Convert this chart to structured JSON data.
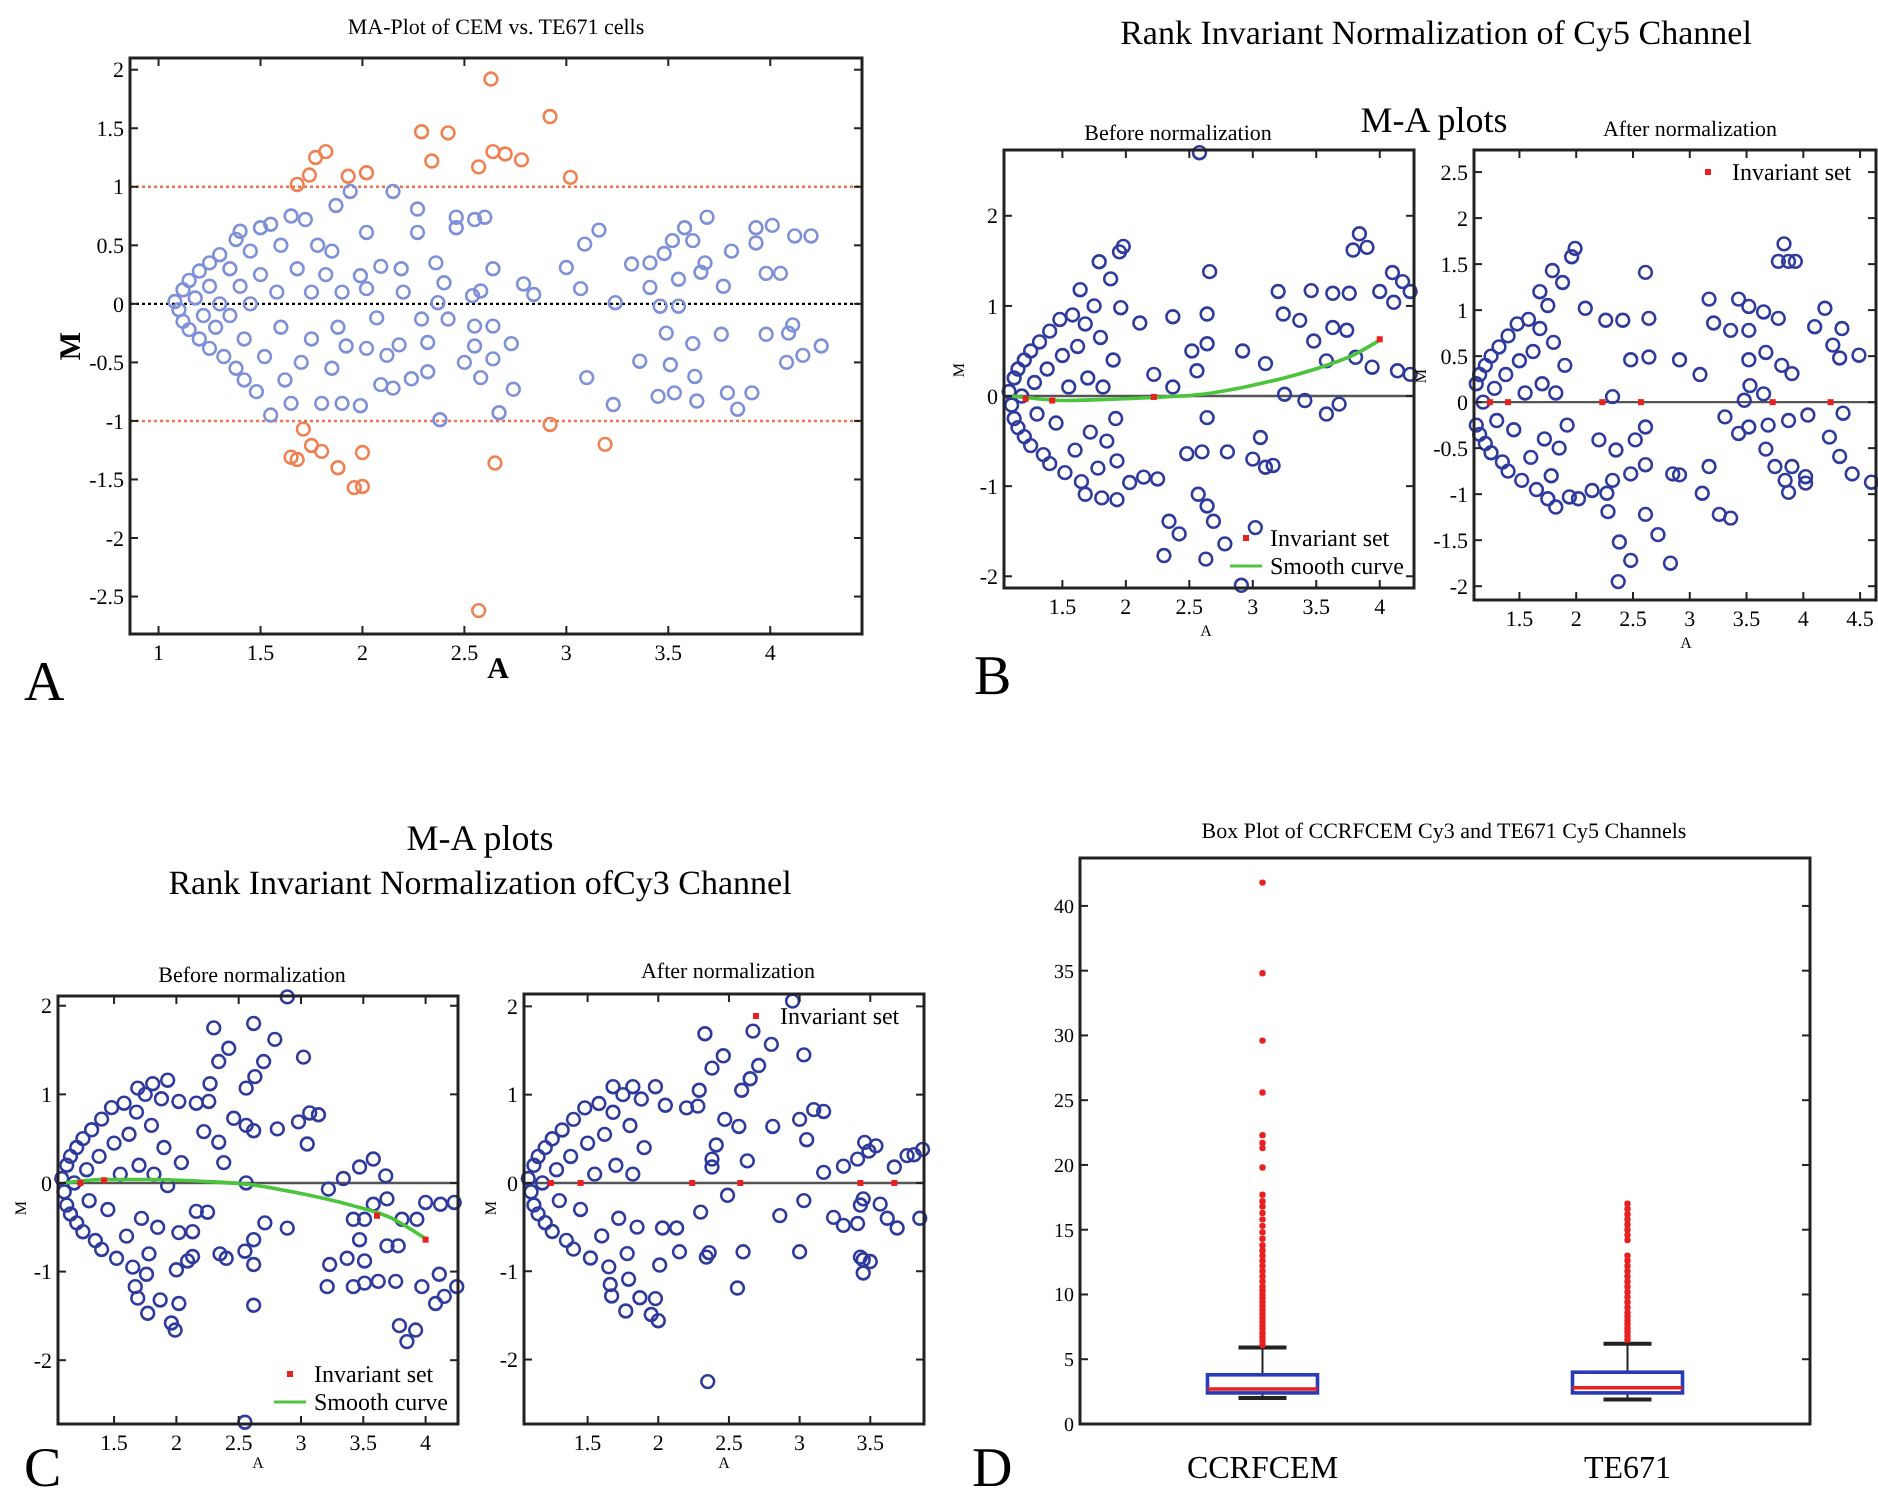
{
  "chart_data": [
    {
      "type": "scatter",
      "title": "MA-Plot of CEM vs. TE671 cells",
      "xlabel": "A",
      "ylabel": "M",
      "xlim": [
        0.86,
        4.45
      ],
      "ylim": [
        -2.82,
        2.1
      ],
      "xticks": [
        1,
        1.5,
        2,
        2.5,
        3,
        3.5,
        4
      ],
      "yticks": [
        2,
        1.5,
        1,
        0.5,
        0,
        -0.5,
        -1,
        -1.5,
        -2,
        -2.5
      ],
      "grid": false,
      "marker": "circle",
      "annotations": [
        "A"
      ],
      "ref_lines": [
        {
          "axis": "y",
          "value": 1,
          "color": "#f07050",
          "line_style": "dotted"
        },
        {
          "axis": "y",
          "value": 0,
          "color": "#000000",
          "line_style": "dotted"
        },
        {
          "axis": "y",
          "value": -1,
          "color": "#f07050",
          "line_style": "dotted"
        }
      ],
      "series": [
        {
          "color": "#7d90d8",
          "x": [
            2.15,
            1.94,
            1.87,
            2.27,
            2.27,
            2.46,
            2.46,
            2.55,
            2.6,
            2.64,
            2.36,
            2.4,
            2.19,
            2.09,
            2.02,
            2.02,
            1.99,
            2.54,
            2.58,
            2.79,
            2.84,
            3,
            3.07,
            3.09,
            3.16,
            3.24,
            3.32,
            3.41,
            3.41,
            3.48,
            3.52,
            3.58,
            3.62,
            3.55,
            3.55,
            3.46,
            3.66,
            3.68,
            3.69,
            3.77,
            3.81,
            3.93,
            3.93,
            4.01,
            3.98,
            4.05,
            4.12,
            4.2,
            3.98,
            4.09,
            4.11,
            4.16,
            4.25,
            4.08,
            3.84,
            3.79,
            3.91,
            3.76,
            3.64,
            3.63,
            3.62,
            3.49,
            3.51,
            3.45,
            3.53,
            3.36,
            3.23,
            3.1,
            2.74,
            2.73,
            2.67,
            2.58,
            2.64,
            2.55,
            2.64,
            2.55,
            2.5,
            2.38,
            2.32,
            2.24,
            2.18,
            2.12,
            2.15,
            2.09,
            2.02,
            1.99,
            1.92,
            2.29,
            2.32,
            2.42,
            2.37,
            2.07,
            2.2,
            1.08,
            1.1,
            1.12,
            1.12,
            1.15,
            1.15,
            1.18,
            1.2,
            1.2,
            1.22,
            1.25,
            1.25,
            1.25,
            1.28,
            1.3,
            1.3,
            1.32,
            1.35,
            1.35,
            1.38,
            1.38,
            1.4,
            1.4,
            1.42,
            1.42,
            1.45,
            1.45,
            1.48,
            1.5,
            1.5,
            1.52,
            1.55,
            1.55,
            1.58,
            1.6,
            1.6,
            1.62,
            1.65,
            1.65,
            1.68,
            1.7,
            1.72,
            1.75,
            1.75,
            1.78,
            1.8,
            1.82,
            1.85,
            1.85,
            1.88,
            1.9,
            1.9
          ],
          "values": [
            0.96,
            0.96,
            0.84,
            0.81,
            0.61,
            0.74,
            0.65,
            0.72,
            0.74,
            0.3,
            0.35,
            0.18,
            0.3,
            0.32,
            0.61,
            0.13,
            0.24,
            0.07,
            0.11,
            0.17,
            0.08,
            0.31,
            0.13,
            0.51,
            0.63,
            0.01,
            0.34,
            0.35,
            0.14,
            0.43,
            0.54,
            0.65,
            0.54,
            0.21,
            -0.02,
            -0.02,
            0.27,
            0.35,
            0.74,
            0.15,
            0.45,
            0.52,
            0.65,
            0.67,
            0.26,
            0.26,
            0.58,
            0.58,
            -0.26,
            -0.25,
            -0.18,
            -0.44,
            -0.36,
            -0.5,
            -0.9,
            -0.76,
            -0.76,
            -0.26,
            -0.83,
            -0.62,
            -0.34,
            -0.25,
            -0.52,
            -0.79,
            -0.76,
            -0.49,
            -0.86,
            -0.63,
            -0.73,
            -0.34,
            -0.93,
            -0.63,
            -0.47,
            -0.19,
            -0.19,
            -0.36,
            -0.5,
            -0.99,
            -0.58,
            -0.64,
            -0.35,
            -0.44,
            -0.72,
            -0.69,
            -0.38,
            -0.87,
            -0.36,
            -0.13,
            -0.33,
            -0.13,
            0.01,
            -0.12,
            0.1,
            0.02,
            -0.05,
            0.12,
            -0.15,
            0.2,
            -0.22,
            0.05,
            0.28,
            -0.3,
            -0.1,
            0.35,
            0.15,
            -0.38,
            -0.2,
            0.42,
            0,
            -0.45,
            0.3,
            -0.1,
            0.55,
            -0.55,
            0.62,
            0.15,
            -0.65,
            -0.3,
            0.45,
            0,
            -0.75,
            0.65,
            0.25,
            -0.45,
            -0.95,
            0.68,
            0.1,
            -0.2,
            0.5,
            -0.65,
            0.75,
            -0.85,
            0.3,
            -0.5,
            0.72,
            0.1,
            -0.3,
            0.5,
            -0.85,
            0.25,
            -0.55,
            0.45,
            -0.2,
            0.1,
            -0.85
          ]
        },
        {
          "color": "#f08050",
          "x": [
            1.68,
            1.74,
            1.77,
            1.82,
            1.93,
            2.02,
            2.29,
            2.34,
            2.42,
            2.57,
            2.64,
            2.7,
            2.78,
            2.63,
            2.92,
            3.02,
            1.71,
            1.65,
            1.68,
            1.75,
            1.8,
            1.88,
            1.96,
            2,
            2,
            2.65,
            2.92,
            3.19,
            2.57
          ],
          "values": [
            1.02,
            1.1,
            1.25,
            1.3,
            1.09,
            1.12,
            1.47,
            1.22,
            1.46,
            1.17,
            1.3,
            1.28,
            1.23,
            1.92,
            1.6,
            1.08,
            -1.07,
            -1.31,
            -1.33,
            -1.21,
            -1.26,
            -1.4,
            -1.57,
            -1.56,
            -1.27,
            -1.36,
            -1.03,
            -1.2,
            -2.62
          ]
        }
      ]
    },
    {
      "type": "scatter",
      "title": "Before normalization",
      "xlabel": "A",
      "ylabel": "M",
      "xlim": [
        1.04,
        4.27
      ],
      "ylim": [
        -2.13,
        2.73
      ],
      "xticks": [
        1.5,
        2,
        2.5,
        3,
        3.5,
        4
      ],
      "yticks": [
        -2,
        -1,
        0,
        1,
        2
      ],
      "grid": false,
      "marker": "circle",
      "legend": "bottom right",
      "annotations": [
        "Rank Invariant Normalization of Cy5 Channel",
        "M-A plots",
        "B"
      ],
      "ref_lines": [
        {
          "axis": "y",
          "value": 0,
          "color": "#555555",
          "line_style": "solid"
        }
      ],
      "series": [
        {
          "color": "#2e3a9c",
          "x": [
            2.58,
            1.98,
            1.95,
            1.79,
            1.64,
            2.66,
            1.96,
            2.11,
            2.37,
            2.64,
            3.2,
            3.46,
            3.63,
            3.76,
            3.84,
            3.79,
            3.9,
            4,
            4.1,
            4.18,
            4.24,
            4.11,
            3.24,
            3.37,
            3.63,
            3.74,
            3.48,
            3.58,
            3.81,
            3.94,
            4.14,
            4.24,
            3.25,
            3.41,
            3.58,
            3.68,
            2.92,
            3.1,
            2.52,
            2.64,
            2.56,
            2.64,
            2.37,
            2.22,
            2.8,
            3.06,
            3,
            3.16,
            3.1,
            2.48,
            2.6,
            2.25,
            2.14,
            2.03,
            1.93,
            1.81,
            1.68,
            2.57,
            2.64,
            2.69,
            2.34,
            2.42,
            2.78,
            3.02,
            2.63,
            2.3,
            2.91,
            1.93,
            1.08,
            1.1,
            1.12,
            1.12,
            1.15,
            1.15,
            1.18,
            1.2,
            1.2,
            1.25,
            1.25,
            1.28,
            1.3,
            1.32,
            1.35,
            1.38,
            1.4,
            1.4,
            1.45,
            1.48,
            1.5,
            1.52,
            1.55,
            1.58,
            1.6,
            1.62,
            1.65,
            1.68,
            1.7,
            1.72,
            1.75,
            1.78,
            1.8,
            1.82,
            1.85,
            1.88,
            1.9,
            1.92
          ],
          "values": [
            2.7,
            1.66,
            1.6,
            1.49,
            1.18,
            1.38,
            0.98,
            0.81,
            0.88,
            0.91,
            1.16,
            1.17,
            1.14,
            1.14,
            1.8,
            1.62,
            1.65,
            1.16,
            1.37,
            1.27,
            1.16,
            1.04,
            0.91,
            0.84,
            0.76,
            0.73,
            0.61,
            0.39,
            0.43,
            0.32,
            0.28,
            0.24,
            0.02,
            -0.05,
            -0.2,
            -0.09,
            0.5,
            0.36,
            0.5,
            0.58,
            0.28,
            -0.24,
            0.1,
            0.24,
            -0.62,
            -0.46,
            -0.7,
            -0.77,
            -0.79,
            -0.64,
            -0.62,
            -0.92,
            -0.9,
            -0.96,
            -1.15,
            -1.13,
            -1.09,
            -1.09,
            -1.22,
            -1.39,
            -1.39,
            -1.53,
            -1.64,
            -1.46,
            -1.81,
            -1.77,
            -2.1,
            -0.72,
            0.05,
            -0.1,
            0.2,
            -0.25,
            0.3,
            -0.35,
            0,
            0.4,
            -0.45,
            0.5,
            -0.55,
            0.15,
            -0.2,
            0.6,
            -0.65,
            0.3,
            0.72,
            -0.75,
            -0.3,
            0.85,
            0.45,
            -0.85,
            0.1,
            0.9,
            -0.6,
            0.55,
            -0.95,
            0.8,
            0.2,
            -0.4,
            1,
            -0.8,
            0.65,
            0.1,
            -0.5,
            1.3,
            0.4,
            -0.25
          ]
        },
        {
          "name": "Invariant set",
          "color": "#e82020",
          "marker": "square",
          "x": [
            1.21,
            1.42,
            2.22,
            4
          ],
          "values": [
            -0.03,
            -0.05,
            -0.01,
            0.63
          ]
        },
        {
          "name": "Smooth curve",
          "type": "line",
          "marker": "none",
          "color": "#4cc43c",
          "x": [
            1.1,
            1.3,
            1.5,
            1.8,
            2,
            2.3,
            2.6,
            3,
            3.3,
            3.6,
            3.8,
            4
          ],
          "values": [
            0,
            -0.03,
            -0.05,
            -0.04,
            -0.03,
            -0.01,
            0.02,
            0.12,
            0.22,
            0.35,
            0.46,
            0.62
          ]
        }
      ]
    },
    {
      "type": "scatter",
      "title": "After normalization",
      "xlabel": "A",
      "ylabel": "M",
      "xlim": [
        1.1,
        4.64
      ],
      "ylim": [
        -2.15,
        2.74
      ],
      "xticks": [
        1.5,
        2,
        2.5,
        3,
        3.5,
        4,
        4.5
      ],
      "yticks": [
        -2,
        -1.5,
        -1,
        -0.5,
        0,
        0.5,
        1,
        1.5,
        2,
        2.5
      ],
      "grid": false,
      "marker": "circle",
      "legend": "top right",
      "ref_lines": [
        {
          "axis": "y",
          "value": 0,
          "color": "#555555",
          "line_style": "solid"
        }
      ],
      "series": [
        {
          "color": "#2e3a9c",
          "x": [
            3.83,
            3.78,
            3.87,
            3.93,
            2.61,
            1.99,
            1.96,
            1.79,
            1.68,
            2.08,
            2.26,
            2.41,
            2.64,
            3.17,
            3.43,
            3.52,
            3.65,
            3.78,
            4.19,
            4.34,
            4.1,
            3.21,
            3.36,
            3.52,
            4.26,
            4.32,
            4.49,
            2.91,
            2.64,
            2.48,
            3.09,
            3.52,
            3.67,
            3.81,
            3.9,
            3.53,
            3.65,
            3.48,
            3.31,
            3.52,
            3.43,
            3.69,
            3.87,
            4.04,
            4.35,
            4.23,
            4.32,
            3.67,
            3.75,
            3.9,
            3.84,
            3.87,
            4.02,
            4.02,
            4.43,
            4.6,
            3.17,
            3.11,
            3.26,
            3.36,
            2.85,
            2.91,
            2.61,
            2.48,
            2.32,
            2.27,
            2.28,
            2.61,
            2.72,
            2.38,
            2.48,
            2.83,
            2.37,
            2.14,
            2.02,
            1.94,
            1.82,
            1.75,
            2.35,
            2.2,
            2.52,
            2.61,
            2.32,
            1.12,
            1.12,
            1.15,
            1.15,
            1.18,
            1.2,
            1.2,
            1.25,
            1.25,
            1.28,
            1.3,
            1.32,
            1.35,
            1.38,
            1.4,
            1.4,
            1.45,
            1.48,
            1.5,
            1.52,
            1.55,
            1.58,
            1.6,
            1.62,
            1.65,
            1.68,
            1.7,
            1.72,
            1.75,
            1.78,
            1.8,
            1.82,
            1.85,
            1.88,
            1.9,
            1.92
          ],
          "values": [
            1.72,
            1.53,
            1.53,
            1.53,
            1.41,
            1.67,
            1.58,
            1.43,
            1.2,
            1.02,
            0.89,
            0.89,
            0.91,
            1.12,
            1.12,
            1.04,
            0.98,
            0.91,
            1.02,
            0.8,
            0.82,
            0.86,
            0.78,
            0.78,
            0.62,
            0.48,
            0.51,
            0.46,
            0.49,
            0.46,
            0.3,
            0.46,
            0.54,
            0.4,
            0.31,
            0.18,
            0.09,
            0.02,
            -0.16,
            -0.27,
            -0.34,
            -0.25,
            -0.2,
            -0.14,
            -0.12,
            -0.38,
            -0.59,
            -0.51,
            -0.7,
            -0.7,
            -0.85,
            -0.98,
            -0.81,
            -0.88,
            -0.78,
            -0.87,
            -0.7,
            -0.99,
            -1.22,
            -1.26,
            -0.78,
            -0.79,
            -0.68,
            -0.78,
            -0.85,
            -0.99,
            -1.19,
            -1.22,
            -1.44,
            -1.52,
            -1.72,
            -1.75,
            -1.95,
            -0.96,
            -1.05,
            -1.03,
            -1.14,
            -1.05,
            -0.52,
            -0.41,
            -0.41,
            -0.27,
            0.06,
            0.2,
            -0.25,
            0.3,
            -0.35,
            0,
            0.4,
            -0.45,
            0.5,
            -0.55,
            0.15,
            -0.2,
            0.6,
            -0.65,
            0.3,
            0.72,
            -0.75,
            -0.3,
            0.85,
            0.45,
            -0.85,
            0.1,
            0.9,
            -0.6,
            0.55,
            -0.95,
            0.8,
            0.2,
            -0.4,
            1.05,
            -0.8,
            0.65,
            0.1,
            -0.5,
            1.3,
            0.4,
            -0.25
          ]
        },
        {
          "name": "Invariant set",
          "color": "#e82020",
          "marker": "square",
          "x": [
            1.24,
            1.4,
            2.23,
            2.57,
            3.73,
            4.24
          ],
          "values": [
            0,
            0,
            0,
            0,
            0,
            0
          ]
        }
      ]
    },
    {
      "type": "scatter",
      "title": "Before normalization",
      "xlabel": "A",
      "ylabel": "M",
      "xlim": [
        1.05,
        4.26
      ],
      "ylim": [
        -2.72,
        2.11
      ],
      "xticks": [
        1.5,
        2,
        2.5,
        3,
        3.5,
        4
      ],
      "yticks": [
        -2,
        -1,
        0,
        1,
        2
      ],
      "grid": false,
      "marker": "circle",
      "legend": "bottom right",
      "annotations": [
        "M-A plots",
        "Rank Invariant Normalization ofCy3 Channel",
        "C"
      ],
      "ref_lines": [
        {
          "axis": "y",
          "value": 0,
          "color": "#555555",
          "line_style": "solid"
        }
      ],
      "series": [
        {
          "color": "#2e3a9c",
          "x": [
            2.89,
            2.3,
            2.62,
            2.79,
            3.02,
            2.42,
            2.34,
            2.7,
            2.56,
            2.63,
            2.27,
            2.26,
            2.16,
            2.02,
            1.93,
            1.81,
            1.69,
            2.46,
            2.56,
            2.62,
            2.81,
            2.98,
            3.07,
            3.14,
            3.05,
            2.34,
            2.22,
            2.38,
            2.56,
            3.58,
            3.47,
            3.68,
            3.34,
            3.22,
            3.81,
            3.69,
            3.58,
            3.51,
            3.42,
            4,
            4.12,
            4.23,
            3.93,
            3.69,
            3.47,
            3.78,
            3.51,
            3.37,
            3.23,
            3.21,
            3.42,
            3.51,
            3.62,
            3.76,
            3.97,
            4.11,
            4.08,
            4.15,
            4.25,
            3.79,
            3.85,
            3.92,
            2.89,
            2.71,
            2.62,
            2.62,
            2.55,
            2.62,
            2.4,
            2.35,
            2.13,
            2.09,
            2,
            2.02,
            1.96,
            1.99,
            1.87,
            1.77,
            1.67,
            1.69,
            1.76,
            2.55,
            2.02,
            2.13,
            2.16,
            2.25,
            1.93,
            2.04,
            1.08,
            1.1,
            1.12,
            1.12,
            1.15,
            1.15,
            1.18,
            1.2,
            1.2,
            1.25,
            1.25,
            1.28,
            1.3,
            1.32,
            1.35,
            1.38,
            1.4,
            1.4,
            1.45,
            1.48,
            1.5,
            1.52,
            1.55,
            1.58,
            1.6,
            1.62,
            1.65,
            1.68,
            1.7,
            1.72,
            1.75,
            1.78,
            1.8,
            1.82,
            1.85,
            1.88,
            1.9
          ],
          "values": [
            2.1,
            1.75,
            1.8,
            1.62,
            1.42,
            1.52,
            1.37,
            1.37,
            1.07,
            1.2,
            1.12,
            0.92,
            0.9,
            0.92,
            1.16,
            1.12,
            1.07,
            0.73,
            0.65,
            0.59,
            0.61,
            0.69,
            0.79,
            0.77,
            0.44,
            0.46,
            0.58,
            0.23,
            0,
            0.27,
            0.18,
            0.08,
            0.05,
            -0.07,
            -0.41,
            -0.18,
            -0.24,
            -0.41,
            -0.41,
            -0.22,
            -0.24,
            -0.22,
            -0.41,
            -0.71,
            -0.64,
            -0.71,
            -0.88,
            -0.85,
            -0.92,
            -1.17,
            -1.17,
            -1.13,
            -1.11,
            -1.11,
            -1.17,
            -1.03,
            -1.36,
            -1.28,
            -1.17,
            -1.61,
            -1.79,
            -1.66,
            -0.51,
            -0.45,
            -0.64,
            -0.92,
            -0.77,
            -1.38,
            -0.85,
            -0.8,
            -0.83,
            -0.88,
            -0.98,
            -1.36,
            -1.58,
            -1.66,
            -1.32,
            -1.47,
            -1.17,
            -1.3,
            -1.03,
            -2.7,
            -0.56,
            -0.55,
            -0.32,
            -0.33,
            -0.03,
            0.23,
            0.05,
            -0.1,
            0.2,
            -0.25,
            0.3,
            -0.35,
            0,
            0.4,
            -0.45,
            0.5,
            -0.55,
            0.15,
            -0.2,
            0.6,
            -0.65,
            0.3,
            0.72,
            -0.75,
            -0.3,
            0.85,
            0.45,
            -0.85,
            0.1,
            0.9,
            -0.6,
            0.55,
            -0.95,
            0.8,
            0.2,
            -0.4,
            1,
            -0.8,
            0.65,
            0.1,
            -0.5,
            0.95,
            0.4
          ]
        },
        {
          "name": "Invariant set",
          "color": "#e82020",
          "marker": "square",
          "x": [
            1.23,
            1.42,
            3.61,
            4
          ],
          "values": [
            0,
            0.03,
            -0.37,
            -0.64
          ]
        },
        {
          "name": "Smooth curve",
          "type": "line",
          "marker": "none",
          "color": "#4cc43c",
          "x": [
            1.1,
            1.4,
            1.8,
            2.2,
            2.6,
            3,
            3.4,
            3.7,
            4
          ],
          "values": [
            0,
            0.04,
            0.04,
            0.02,
            -0.02,
            -0.12,
            -0.25,
            -0.38,
            -0.63
          ]
        }
      ]
    },
    {
      "type": "scatter",
      "title": "After normalization",
      "xlabel": "A",
      "ylabel": "M",
      "xlim": [
        1.05,
        3.88
      ],
      "ylim": [
        -2.73,
        2.14
      ],
      "xticks": [
        1.5,
        2,
        2.5,
        3,
        3.5
      ],
      "yticks": [
        -2,
        -1,
        0,
        1,
        2
      ],
      "grid": false,
      "marker": "circle",
      "legend": "top right",
      "ref_lines": [
        {
          "axis": "y",
          "value": 0,
          "color": "#555555",
          "line_style": "solid"
        }
      ],
      "series": [
        {
          "color": "#2e3a9c",
          "x": [
            2.95,
            2.67,
            2.8,
            3.03,
            2.33,
            2.46,
            2.38,
            2.71,
            2.65,
            2.59,
            2.29,
            2.28,
            2.2,
            2.05,
            1.98,
            1.82,
            1.68,
            2.47,
            2.57,
            2.81,
            3,
            3.1,
            3.17,
            3.05,
            2.41,
            2.63,
            2.38,
            3.17,
            3.31,
            3.41,
            3.46,
            3.54,
            3.49,
            3.67,
            3.76,
            3.87,
            3.81,
            3.03,
            3.24,
            3.31,
            3.43,
            3.41,
            3.45,
            3.62,
            3.69,
            3.85,
            3.57,
            3.43,
            3.45,
            3.5,
            3.45,
            3,
            2.86,
            2.56,
            2.6,
            2.34,
            2.36,
            2.15,
            2.01,
            1.98,
            2,
            1.95,
            1.87,
            1.77,
            1.79,
            1.66,
            1.67,
            2.35,
            2.03,
            2.13,
            2.3,
            2.49,
            2.38,
            1.08,
            1.1,
            1.12,
            1.12,
            1.15,
            1.15,
            1.18,
            1.2,
            1.2,
            1.25,
            1.25,
            1.28,
            1.3,
            1.32,
            1.35,
            1.38,
            1.4,
            1.4,
            1.45,
            1.48,
            1.5,
            1.52,
            1.55,
            1.58,
            1.6,
            1.62,
            1.65,
            1.68,
            1.7,
            1.72,
            1.75,
            1.78,
            1.8,
            1.82,
            1.85,
            1.88,
            1.9
          ],
          "values": [
            2.06,
            1.72,
            1.57,
            1.45,
            1.69,
            1.44,
            1.3,
            1.33,
            1.18,
            1.05,
            1.05,
            0.87,
            0.85,
            0.88,
            1.09,
            1.09,
            1.09,
            0.72,
            0.64,
            0.64,
            0.72,
            0.83,
            0.81,
            0.49,
            0.43,
            0.25,
            0.18,
            0.12,
            0.19,
            0.27,
            0.46,
            0.42,
            0.36,
            0.18,
            0.31,
            0.38,
            0.32,
            -0.2,
            -0.39,
            -0.48,
            -0.25,
            -0.46,
            -0.18,
            -0.4,
            -0.51,
            -0.4,
            -0.24,
            -0.84,
            -0.87,
            -0.89,
            -1.02,
            -0.78,
            -0.37,
            -1.19,
            -0.78,
            -0.84,
            -0.79,
            -0.78,
            -0.93,
            -1.31,
            -1.56,
            -1.49,
            -1.3,
            -1.45,
            -1.09,
            -1.15,
            -1.28,
            -2.25,
            -0.51,
            -0.51,
            -0.33,
            -0.14,
            0.27,
            0.05,
            -0.1,
            0.2,
            -0.25,
            0.3,
            -0.35,
            0,
            0.4,
            -0.45,
            0.5,
            -0.55,
            0.15,
            -0.2,
            0.6,
            -0.65,
            0.3,
            0.72,
            -0.75,
            -0.3,
            0.85,
            0.45,
            -0.85,
            0.1,
            0.9,
            -0.6,
            0.55,
            -0.95,
            0.8,
            0.2,
            -0.4,
            1,
            -0.8,
            0.65,
            0.1,
            -0.5,
            0.95,
            0.4
          ]
        },
        {
          "name": "Invariant set",
          "color": "#e82020",
          "marker": "square",
          "x": [
            1.24,
            1.45,
            2.24,
            2.58,
            3.43,
            3.67
          ],
          "values": [
            0,
            0,
            0,
            0,
            0,
            0
          ]
        }
      ]
    },
    {
      "type": "box",
      "title": "Box Plot of CCRFCEM Cy3 and TE671 Cy5 Channels",
      "categories": [
        "CCRFCEM",
        "TE671"
      ],
      "ylim": [
        0,
        43.7
      ],
      "yticks": [
        0,
        5,
        10,
        15,
        20,
        25,
        30,
        35,
        40
      ],
      "grid": false,
      "annotations": [
        "D"
      ],
      "series": [
        {
          "color": "#2a3ab8",
          "boxes": [
            {
              "low": 2,
              "q1": 2.4,
              "median": 2.7,
              "q3": 3.8,
              "high": 5.9,
              "outliers": [
                6.1,
                6.4,
                6.7,
                7,
                7.3,
                7.6,
                7.9,
                8.2,
                8.5,
                8.8,
                9.1,
                9.4,
                9.7,
                10,
                10.3,
                10.6,
                11,
                11.4,
                11.8,
                12.2,
                12.6,
                13,
                13.4,
                13.8,
                14.3,
                14.8,
                15.3,
                15.8,
                16.3,
                16.8,
                17.2,
                17.7,
                19.8,
                21.3,
                21.7,
                22.3,
                25.6,
                29.6,
                34.8,
                41.8
              ]
            },
            {
              "low": 1.9,
              "q1": 2.4,
              "median": 2.8,
              "q3": 4,
              "high": 6.2,
              "outliers": [
                6.5,
                6.8,
                7.1,
                7.4,
                7.7,
                8,
                8.3,
                8.6,
                9,
                9.4,
                9.8,
                10.2,
                10.6,
                11,
                11.4,
                11.8,
                12.2,
                12.6,
                13,
                14.2,
                14.6,
                15,
                15.4,
                15.8,
                16.2,
                16.6,
                17
              ]
            }
          ]
        }
      ]
    }
  ]
}
